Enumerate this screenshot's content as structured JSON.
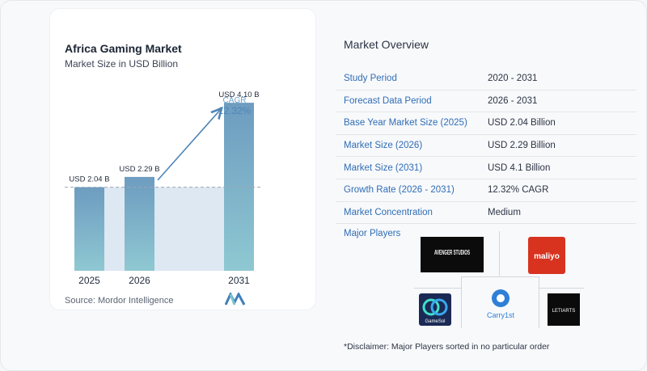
{
  "chart": {
    "title": "Africa Gaming Market",
    "subtitle": "Market Size in USD Billion",
    "cagr_label": "CAGR",
    "cagr_value": "12.32%",
    "source": "Source:  Mordor Intelligence"
  },
  "chart_data": {
    "type": "bar",
    "title": "Africa Gaming Market",
    "subtitle": "Market Size in USD Billion",
    "categories": [
      "2025",
      "2026",
      "2031"
    ],
    "values": [
      2.04,
      2.29,
      4.1
    ],
    "data_labels": [
      "USD 2.04 B",
      "USD 2.29 B",
      "USD 4.10 B"
    ],
    "annotation": "CAGR 12.32%",
    "grid": false,
    "colors": {
      "bar_top": "#6d9cc0",
      "bar_bottom": "#8fc8d2",
      "band": "#dde8f2",
      "arrow": "#4f86b7"
    }
  },
  "overview": {
    "title": "Market Overview",
    "rows": [
      {
        "label": "Study Period",
        "value": "2020 - 2031"
      },
      {
        "label": "Forecast Data Period",
        "value": "2026 - 2031"
      },
      {
        "label": "Base Year Market Size (2025)",
        "value": "USD 2.04 Billion"
      },
      {
        "label": "Market Size (2026)",
        "value": "USD 2.29 Billion"
      },
      {
        "label": "Market Size (2031)",
        "value": "USD 4.1 Billion"
      },
      {
        "label": "Growth Rate (2026 - 2031)",
        "value": "12.32% CAGR"
      },
      {
        "label": "Market Concentration",
        "value": "Medium"
      }
    ],
    "players_label": "Major Players",
    "disclaimer": "*Disclaimer: Major Players sorted in no particular order"
  },
  "players": {
    "avenger": "AVENGER STUDIOS",
    "maliyo": "maliyo",
    "gamesol": "GameSol",
    "carry1st": "Carry1st",
    "letiarts": "LETIARTS"
  }
}
